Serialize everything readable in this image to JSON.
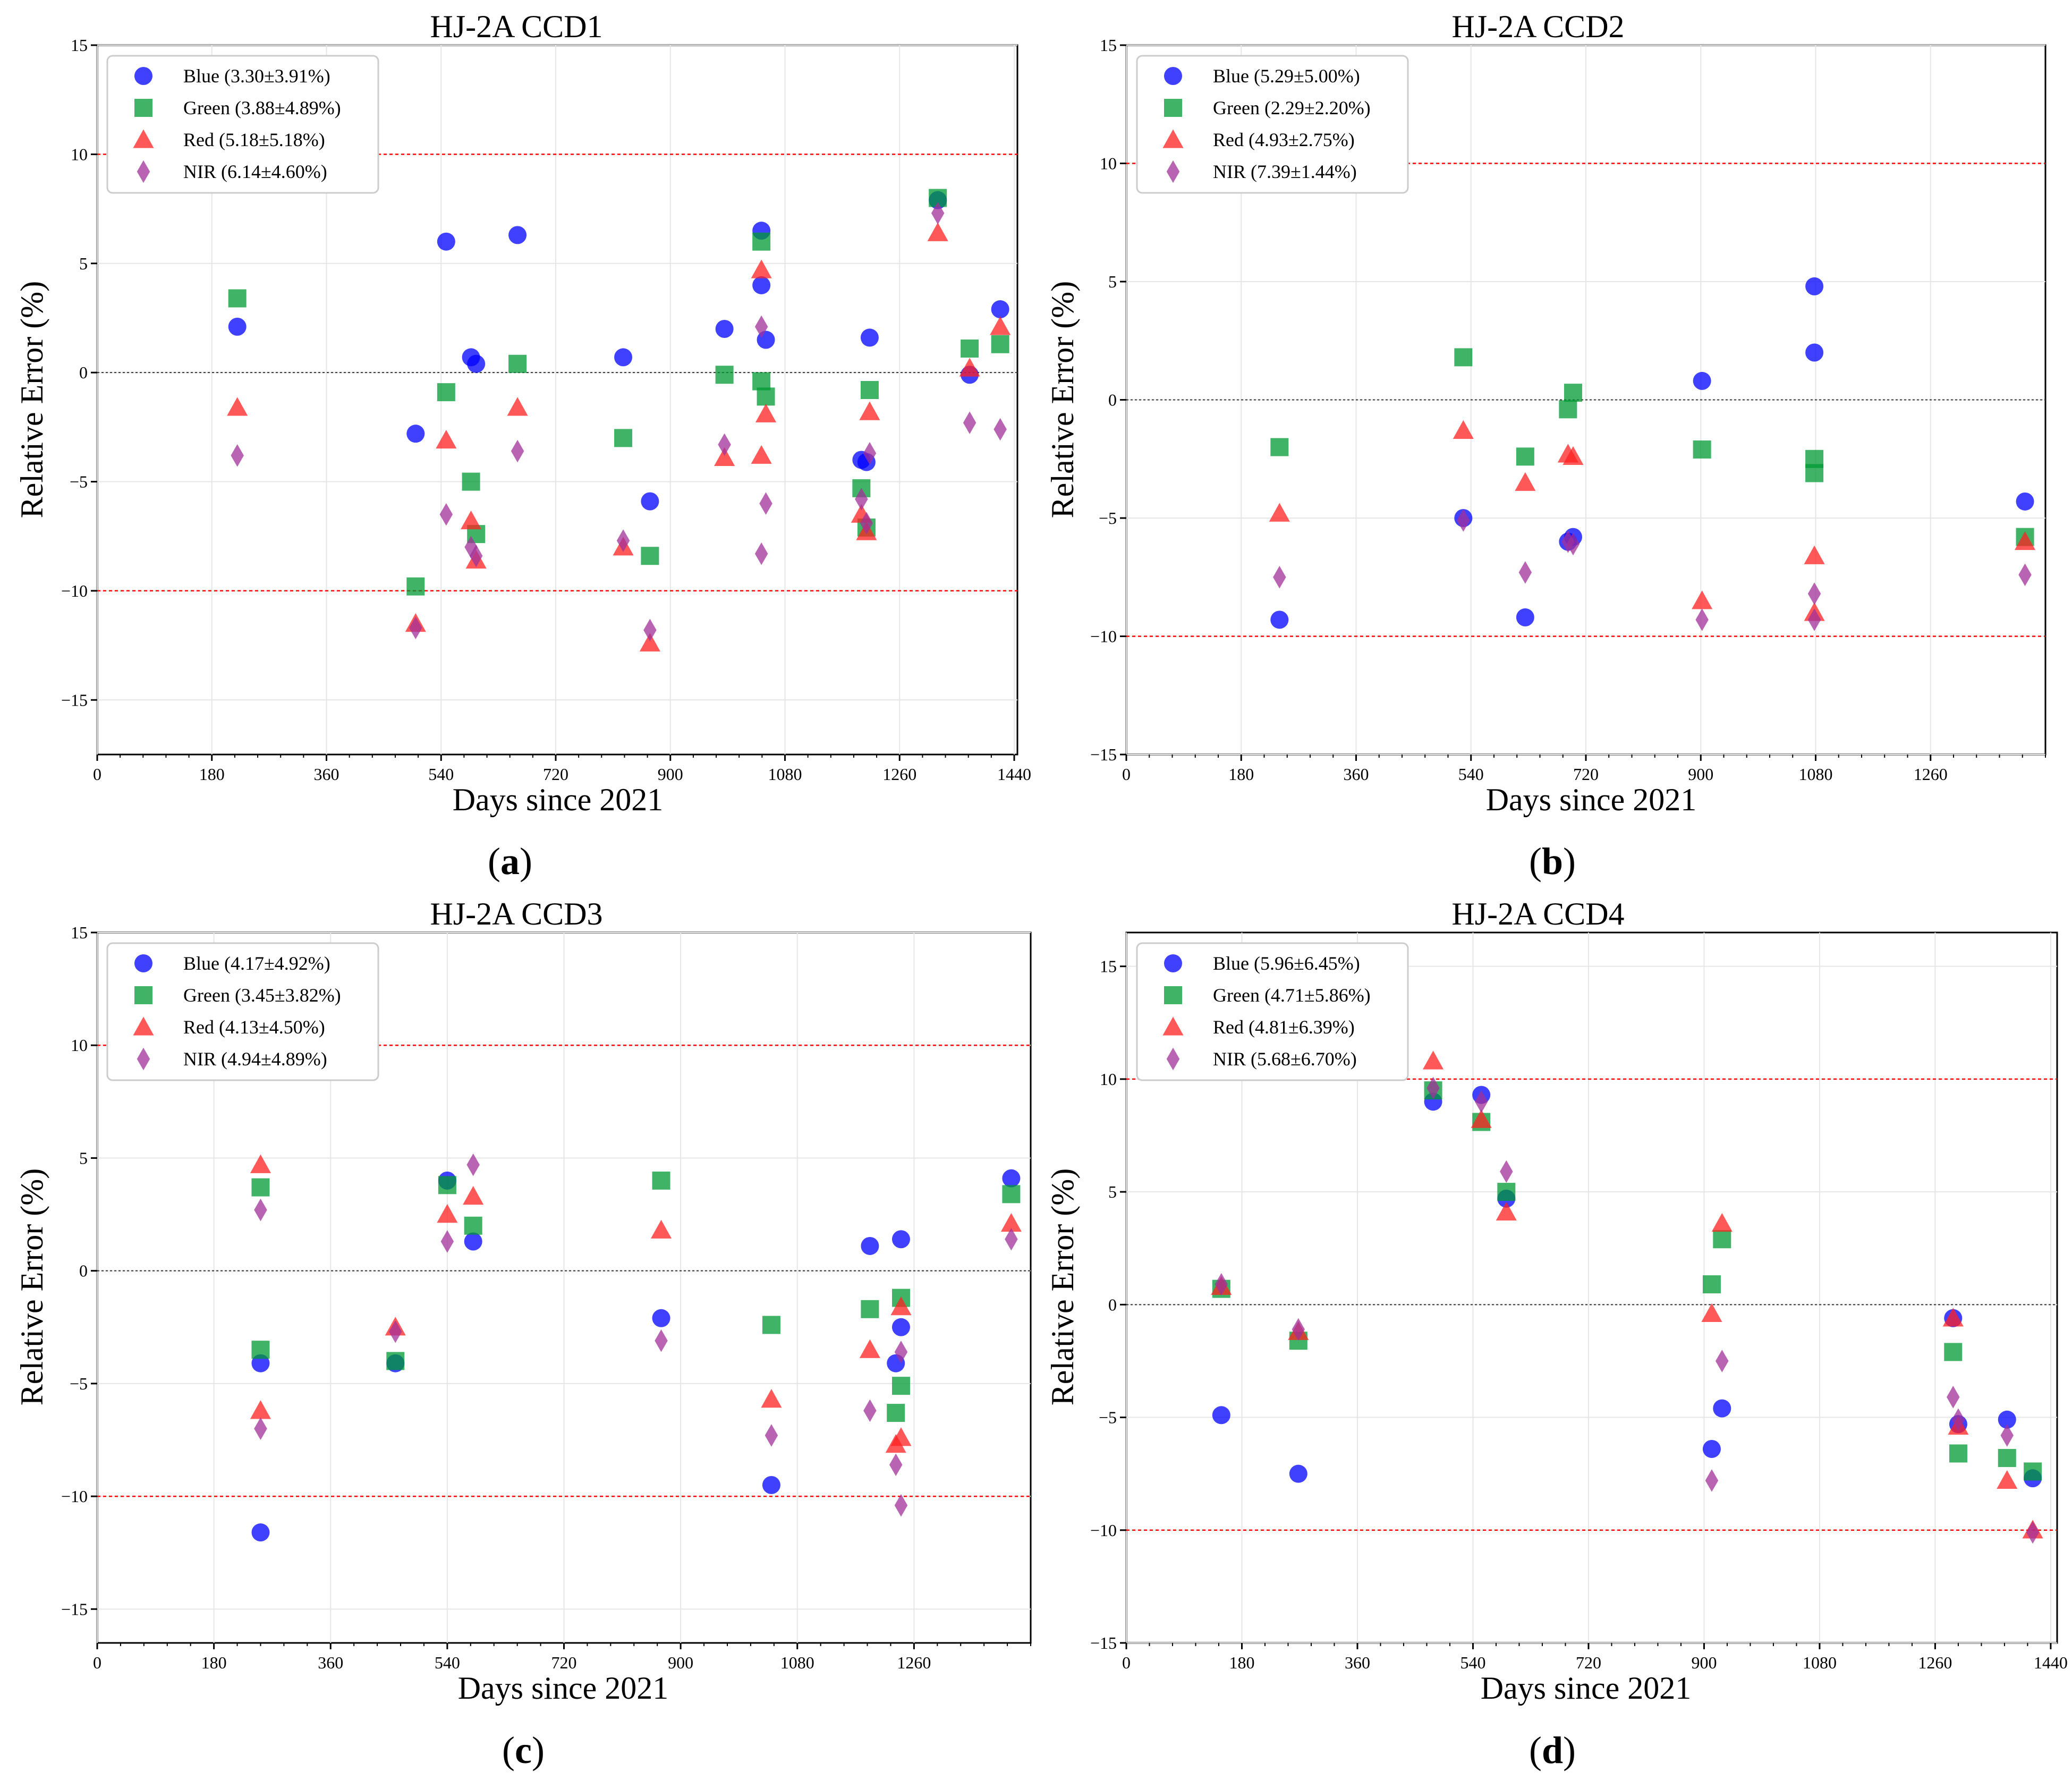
{
  "styles": {
    "colors": {
      "Blue": "#0000ff",
      "Green": "#009933",
      "Red": "#ff2020",
      "NIR": "#a0309a"
    },
    "markers": {
      "Blue": "circle",
      "Green": "square",
      "Red": "triangle",
      "NIR": "diamond"
    },
    "ref_line_color": "#ff0000",
    "zero_line_color": "#333333"
  },
  "chart_data": [
    {
      "type": "scatter",
      "title": "HJ-2A CCD1",
      "panel_label": "a",
      "xlabel": "Days since 2021",
      "ylabel": "Relative Error (%)",
      "xlim": [
        0,
        1445
      ],
      "ylim": [
        -17.5,
        15
      ],
      "xticks": [
        0,
        180,
        360,
        540,
        720,
        900,
        1080,
        1260,
        1440
      ],
      "yticks": [
        -15,
        -10,
        -5,
        0,
        5,
        10,
        15
      ],
      "reference_lines": [
        10,
        -10
      ],
      "zero_line": 0,
      "grid": true,
      "legend_position": "top-left",
      "series": [
        {
          "name": "Blue",
          "legend": "Blue (3.30±3.91%)",
          "points": [
            [
              220,
              2.1
            ],
            [
              500,
              -2.8
            ],
            [
              548,
              6.0
            ],
            [
              587,
              0.7
            ],
            [
              595,
              0.4
            ],
            [
              660,
              6.3
            ],
            [
              826,
              0.7
            ],
            [
              868,
              -5.9
            ],
            [
              985,
              2.0
            ],
            [
              1043,
              6.5
            ],
            [
              1043,
              4.0
            ],
            [
              1050,
              1.5
            ],
            [
              1200,
              -4.0
            ],
            [
              1208,
              -4.1
            ],
            [
              1213,
              1.6
            ],
            [
              1320,
              7.9
            ],
            [
              1370,
              -0.1
            ],
            [
              1418,
              2.9
            ]
          ]
        },
        {
          "name": "Green",
          "legend": "Green (3.88±4.89%)",
          "points": [
            [
              220,
              3.4
            ],
            [
              500,
              -9.8
            ],
            [
              548,
              -0.9
            ],
            [
              587,
              -5.0
            ],
            [
              595,
              -7.4
            ],
            [
              660,
              0.4
            ],
            [
              826,
              -3.0
            ],
            [
              868,
              -8.4
            ],
            [
              985,
              -0.1
            ],
            [
              1043,
              6.0
            ],
            [
              1043,
              -0.4
            ],
            [
              1050,
              -1.1
            ],
            [
              1200,
              -5.3
            ],
            [
              1208,
              -7.1
            ],
            [
              1213,
              -0.8
            ],
            [
              1320,
              8.0
            ],
            [
              1370,
              1.1
            ],
            [
              1418,
              1.3
            ]
          ]
        },
        {
          "name": "Red",
          "legend": "Red (5.18±5.18%)",
          "points": [
            [
              220,
              -1.6
            ],
            [
              500,
              -11.5
            ],
            [
              548,
              -3.1
            ],
            [
              587,
              -6.8
            ],
            [
              595,
              -8.6
            ],
            [
              660,
              -1.6
            ],
            [
              826,
              -8.0
            ],
            [
              868,
              -12.4
            ],
            [
              985,
              -3.9
            ],
            [
              1043,
              4.7
            ],
            [
              1043,
              -3.8
            ],
            [
              1050,
              -1.9
            ],
            [
              1200,
              -6.5
            ],
            [
              1208,
              -7.3
            ],
            [
              1213,
              -1.8
            ],
            [
              1320,
              6.4
            ],
            [
              1370,
              0.2
            ],
            [
              1418,
              2.1
            ]
          ]
        },
        {
          "name": "NIR",
          "legend": "NIR (6.14±4.60%)",
          "points": [
            [
              220,
              -3.8
            ],
            [
              500,
              -11.7
            ],
            [
              548,
              -6.5
            ],
            [
              587,
              -8.0
            ],
            [
              595,
              -8.4
            ],
            [
              660,
              -3.6
            ],
            [
              826,
              -7.7
            ],
            [
              868,
              -11.8
            ],
            [
              985,
              -3.3
            ],
            [
              1043,
              2.1
            ],
            [
              1043,
              -8.3
            ],
            [
              1050,
              -6.0
            ],
            [
              1200,
              -5.8
            ],
            [
              1208,
              -6.9
            ],
            [
              1213,
              -3.7
            ],
            [
              1320,
              7.3
            ],
            [
              1370,
              -2.3
            ],
            [
              1418,
              -2.6
            ]
          ]
        }
      ]
    },
    {
      "type": "scatter",
      "title": "HJ-2A CCD2",
      "panel_label": "b",
      "xlabel": "Days since 2021",
      "ylabel": "Relative Error (%)",
      "xlim": [
        0,
        1440
      ],
      "ylim": [
        -15,
        15
      ],
      "xticks": [
        0,
        180,
        360,
        540,
        720,
        900,
        1080,
        1260
      ],
      "yticks": [
        -15,
        -10,
        -5,
        0,
        5,
        10,
        15
      ],
      "reference_lines": [
        10,
        -10
      ],
      "zero_line": 0,
      "grid": true,
      "legend_position": "top-left",
      "series": [
        {
          "name": "Blue",
          "legend": "Blue (5.29±5.00%)",
          "points": [
            [
              240,
              -9.3
            ],
            [
              528,
              -5.0
            ],
            [
              625,
              -9.2
            ],
            [
              692,
              -6.0
            ],
            [
              700,
              -5.8
            ],
            [
              902,
              0.8
            ],
            [
              1078,
              4.8
            ],
            [
              1078,
              2.0
            ],
            [
              1408,
              -4.3
            ]
          ]
        },
        {
          "name": "Green",
          "legend": "Green (2.29±2.20%)",
          "points": [
            [
              240,
              -2.0
            ],
            [
              528,
              1.8
            ],
            [
              625,
              -2.4
            ],
            [
              692,
              -0.4
            ],
            [
              700,
              0.3
            ],
            [
              902,
              -2.1
            ],
            [
              1078,
              -2.5
            ],
            [
              1078,
              -3.1
            ],
            [
              1408,
              -5.8
            ]
          ]
        },
        {
          "name": "Red",
          "legend": "Red (4.93±2.75%)",
          "points": [
            [
              240,
              -4.8
            ],
            [
              528,
              -1.3
            ],
            [
              625,
              -3.5
            ],
            [
              692,
              -2.3
            ],
            [
              700,
              -2.4
            ],
            [
              902,
              -8.5
            ],
            [
              1078,
              -6.6
            ],
            [
              1078,
              -9.0
            ],
            [
              1408,
              -6.0
            ]
          ]
        },
        {
          "name": "NIR",
          "legend": "NIR (7.39±1.44%)",
          "points": [
            [
              240,
              -7.5
            ],
            [
              528,
              -5.1
            ],
            [
              625,
              -7.3
            ],
            [
              692,
              -6.0
            ],
            [
              700,
              -6.1
            ],
            [
              902,
              -9.3
            ],
            [
              1078,
              -8.2
            ],
            [
              1078,
              -9.3
            ],
            [
              1408,
              -7.4
            ]
          ]
        }
      ]
    },
    {
      "type": "scatter",
      "title": "HJ-2A CCD3",
      "panel_label": "c",
      "xlabel": "Days since 2021",
      "ylabel": "Relative Error (%)",
      "xlim": [
        0,
        1440
      ],
      "ylim": [
        -16.5,
        15
      ],
      "xticks": [
        0,
        180,
        360,
        540,
        720,
        900,
        1080,
        1260
      ],
      "yticks": [
        -15,
        -10,
        -5,
        0,
        5,
        10,
        15
      ],
      "reference_lines": [
        10,
        -10
      ],
      "zero_line": 0,
      "grid": true,
      "legend_position": "top-left",
      "series": [
        {
          "name": "Blue",
          "legend": "Blue (4.17±4.92%)",
          "points": [
            [
              252,
              -4.1
            ],
            [
              252,
              -11.6
            ],
            [
              460,
              -4.1
            ],
            [
              540,
              4.0
            ],
            [
              580,
              1.3
            ],
            [
              870,
              -2.1
            ],
            [
              1040,
              -9.5
            ],
            [
              1192,
              1.1
            ],
            [
              1232,
              -4.1
            ],
            [
              1240,
              1.4
            ],
            [
              1240,
              -2.5
            ],
            [
              1410,
              4.1
            ]
          ]
        },
        {
          "name": "Green",
          "legend": "Green (3.45±3.82%)",
          "points": [
            [
              252,
              3.7
            ],
            [
              252,
              -3.5
            ],
            [
              460,
              -4.0
            ],
            [
              540,
              3.8
            ],
            [
              580,
              2.0
            ],
            [
              870,
              4.0
            ],
            [
              1040,
              -2.4
            ],
            [
              1192,
              -1.7
            ],
            [
              1232,
              -6.3
            ],
            [
              1240,
              -1.2
            ],
            [
              1240,
              -5.1
            ],
            [
              1410,
              3.4
            ]
          ]
        },
        {
          "name": "Red",
          "legend": "Red (4.13±4.50%)",
          "points": [
            [
              252,
              4.7
            ],
            [
              252,
              -6.2
            ],
            [
              460,
              -2.5
            ],
            [
              540,
              2.5
            ],
            [
              580,
              3.3
            ],
            [
              870,
              1.8
            ],
            [
              1040,
              -5.7
            ],
            [
              1192,
              -3.5
            ],
            [
              1232,
              -7.7
            ],
            [
              1240,
              -1.6
            ],
            [
              1240,
              -7.4
            ],
            [
              1410,
              2.1
            ]
          ]
        },
        {
          "name": "NIR",
          "legend": "NIR (4.94±4.89%)",
          "points": [
            [
              252,
              2.7
            ],
            [
              252,
              -7.0
            ],
            [
              460,
              -2.7
            ],
            [
              540,
              1.3
            ],
            [
              580,
              4.7
            ],
            [
              870,
              -3.1
            ],
            [
              1040,
              -7.3
            ],
            [
              1192,
              -6.2
            ],
            [
              1232,
              -8.6
            ],
            [
              1240,
              -3.6
            ],
            [
              1240,
              -10.4
            ],
            [
              1410,
              1.4
            ]
          ]
        }
      ]
    },
    {
      "type": "scatter",
      "title": "HJ-2A CCD4",
      "panel_label": "d",
      "xlabel": "Days since 2021",
      "ylabel": "Relative Error (%)",
      "xlim": [
        0,
        1450
      ],
      "ylim": [
        -15,
        16.5
      ],
      "xticks": [
        0,
        180,
        360,
        540,
        720,
        900,
        1080,
        1260,
        1440
      ],
      "yticks": [
        -15,
        -10,
        -5,
        0,
        5,
        10,
        15
      ],
      "reference_lines": [
        10,
        -10
      ],
      "zero_line": 0,
      "grid": true,
      "legend_position": "top-left",
      "series": [
        {
          "name": "Blue",
          "legend": "Blue (5.96±6.45%)",
          "points": [
            [
              148,
              -4.9
            ],
            [
              268,
              -7.5
            ],
            [
              478,
              9.0
            ],
            [
              553,
              9.3
            ],
            [
              592,
              4.7
            ],
            [
              912,
              -6.4
            ],
            [
              928,
              -4.6
            ],
            [
              1288,
              -0.6
            ],
            [
              1296,
              -5.3
            ],
            [
              1372,
              -5.1
            ],
            [
              1412,
              -7.7
            ]
          ]
        },
        {
          "name": "Green",
          "legend": "Green (4.71±5.86%)",
          "points": [
            [
              148,
              0.7
            ],
            [
              268,
              -1.6
            ],
            [
              478,
              9.5
            ],
            [
              553,
              8.1
            ],
            [
              592,
              5.0
            ],
            [
              912,
              0.9
            ],
            [
              928,
              2.9
            ],
            [
              1288,
              -2.1
            ],
            [
              1296,
              -6.6
            ],
            [
              1372,
              -6.8
            ],
            [
              1412,
              -7.4
            ]
          ]
        },
        {
          "name": "Red",
          "legend": "Red (4.81±6.39%)",
          "points": [
            [
              148,
              0.8
            ],
            [
              268,
              -1.2
            ],
            [
              478,
              10.8
            ],
            [
              553,
              8.2
            ],
            [
              592,
              4.1
            ],
            [
              912,
              -0.4
            ],
            [
              928,
              3.6
            ],
            [
              1288,
              -0.6
            ],
            [
              1296,
              -5.4
            ],
            [
              1372,
              -7.8
            ],
            [
              1412,
              -10.0
            ]
          ]
        },
        {
          "name": "NIR",
          "legend": "NIR (5.68±6.70%)",
          "points": [
            [
              148,
              0.9
            ],
            [
              268,
              -1.1
            ],
            [
              478,
              9.6
            ],
            [
              553,
              9.0
            ],
            [
              592,
              5.9
            ],
            [
              912,
              -7.8
            ],
            [
              928,
              -2.5
            ],
            [
              1288,
              -4.1
            ],
            [
              1296,
              -5.1
            ],
            [
              1372,
              -5.8
            ],
            [
              1412,
              -10.1
            ]
          ]
        }
      ]
    }
  ]
}
